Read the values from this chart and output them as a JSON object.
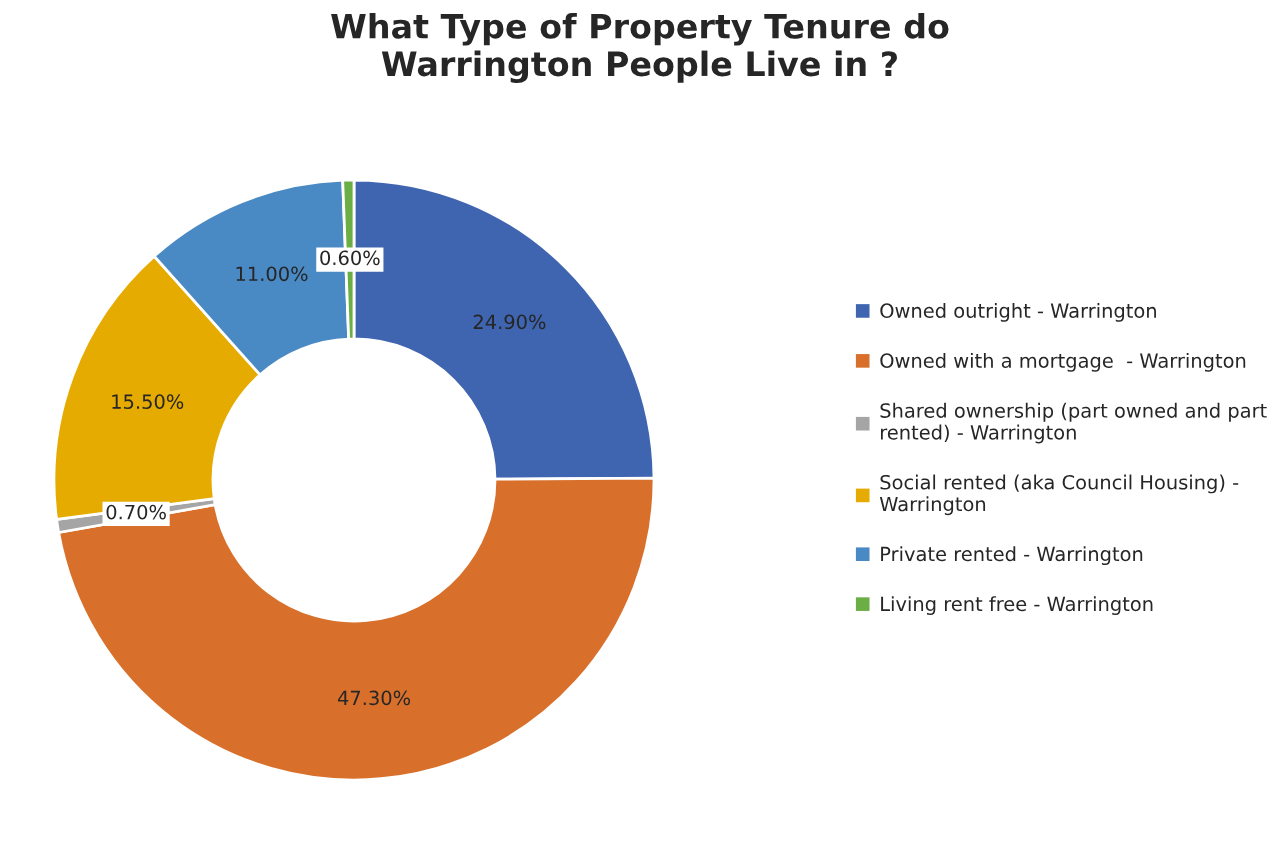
{
  "chart_data": {
    "type": "donut",
    "title": "What Type of Property Tenure do\nWarrington People Live in ?",
    "categories": [
      "Owned outright - Warrington",
      "Owned with a mortgage  - Warrington",
      "Shared ownership (part owned and part\nrented) - Warrington",
      "Social rented (aka Council Housing) -\nWarrington",
      "Private rented - Warrington",
      "Living rent free - Warrington"
    ],
    "values": [
      24.9,
      47.3,
      0.7,
      15.5,
      11.0,
      0.6
    ],
    "value_labels": [
      "24.90%",
      "47.30%",
      "0.70%",
      "15.50%",
      "11.00%",
      "0.60%"
    ],
    "colors": [
      "#3f64b0",
      "#d8702c",
      "#a5a5a5",
      "#e6ab00",
      "#4a8ac4",
      "#6aae45"
    ],
    "legend": "right"
  }
}
